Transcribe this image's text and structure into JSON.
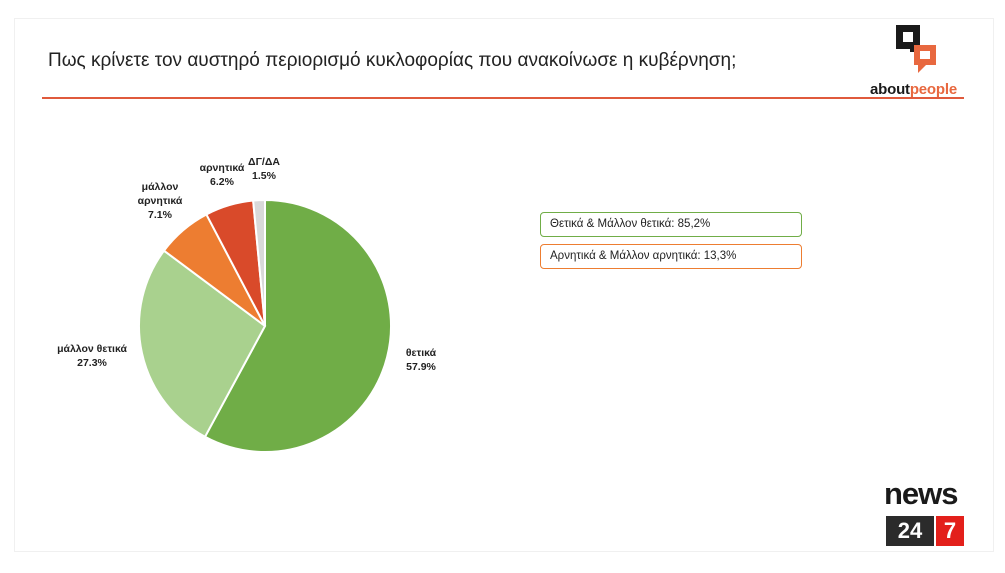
{
  "title": "Πως κρίνετε τον αυστηρό περιορισμό κυκλοφορίας που ανακοίνωσε η κυβέρνηση;",
  "brand": {
    "about_part1": "about",
    "about_part2": "people",
    "news_word": "news",
    "news_24": "24",
    "news_7": "7"
  },
  "colors": {
    "accent_rule": "#e05a3c",
    "positive_box": "#70ad47",
    "negative_box": "#ed7d31"
  },
  "chart_data": {
    "type": "pie",
    "title": "",
    "slices": [
      {
        "name": "θετικά",
        "label_lines": [
          "θετικά"
        ],
        "value": 57.9,
        "value_label": "57.9%",
        "color": "#70ad47"
      },
      {
        "name": "μάλλον θετικά",
        "label_lines": [
          "μάλλον θετικά"
        ],
        "value": 27.3,
        "value_label": "27.3%",
        "color": "#a9d18e"
      },
      {
        "name": "μάλλον αρνητικά",
        "label_lines": [
          "μάλλον",
          "αρνητικά"
        ],
        "value": 7.1,
        "value_label": "7.1%",
        "color": "#ed7d31"
      },
      {
        "name": "αρνητικά",
        "label_lines": [
          "αρνητικά"
        ],
        "value": 6.2,
        "value_label": "6.2%",
        "color": "#d94a2a"
      },
      {
        "name": "ΔΓ/ΔΑ",
        "label_lines": [
          "ΔΓ/ΔΑ"
        ],
        "value": 1.5,
        "value_label": "1.5%",
        "color": "#d9d9d9"
      }
    ],
    "start": "12 o'clock",
    "direction": "clockwise",
    "legend": "none"
  },
  "summary": {
    "positive": "Θετικά & Μάλλον θετικά: 85,2%",
    "negative": "Αρνητικά & Μάλλον αρνητικά: 13,3%"
  }
}
